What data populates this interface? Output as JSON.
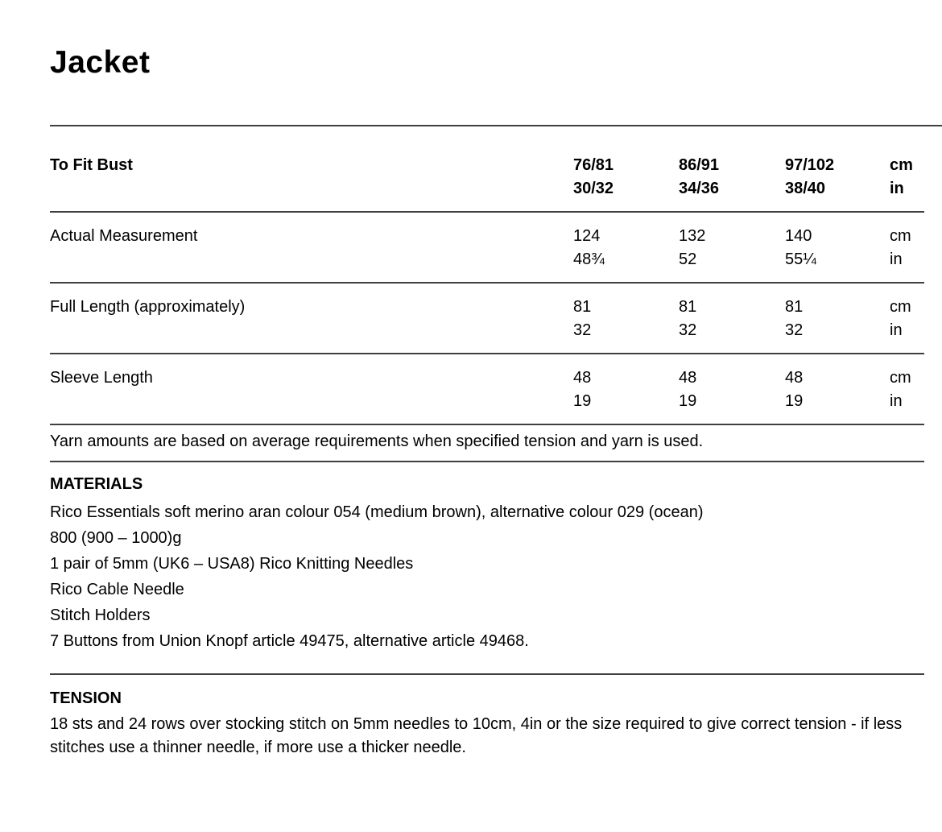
{
  "page": {
    "title": "Jacket"
  },
  "colors": {
    "background": "#ffffff",
    "text": "#000000",
    "rule": "#3f3f3f"
  },
  "size_table": {
    "header": {
      "label": "To Fit Bust",
      "sizes": [
        {
          "cm": "76/81",
          "in": "30/32"
        },
        {
          "cm": "86/91",
          "in": "34/36"
        },
        {
          "cm": "97/102",
          "in": "38/40"
        }
      ],
      "unit": {
        "cm": "cm",
        "in": "in"
      }
    },
    "rows": [
      {
        "label": "Actual Measurement",
        "values": [
          {
            "cm": "124",
            "in": "48¾"
          },
          {
            "cm": "132",
            "in": "52"
          },
          {
            "cm": "140",
            "in": "55¼"
          }
        ],
        "unit": {
          "cm": "cm",
          "in": "in"
        }
      },
      {
        "label": "Full Length (approximately)",
        "values": [
          {
            "cm": "81",
            "in": "32"
          },
          {
            "cm": "81",
            "in": "32"
          },
          {
            "cm": "81",
            "in": "32"
          }
        ],
        "unit": {
          "cm": "cm",
          "in": "in"
        }
      },
      {
        "label": "Sleeve Length",
        "values": [
          {
            "cm": "48",
            "in": "19"
          },
          {
            "cm": "48",
            "in": "19"
          },
          {
            "cm": "48",
            "in": "19"
          }
        ],
        "unit": {
          "cm": "cm",
          "in": "in"
        }
      }
    ]
  },
  "yarn_note": "Yarn amounts are based on average requirements when specified tension and yarn is used.",
  "materials": {
    "heading": "MATERIALS",
    "items": [
      "Rico Essentials soft merino aran colour 054 (medium brown), alternative colour 029 (ocean)",
      "800 (900 – 1000)g",
      "1 pair of 5mm (UK6 – USA8) Rico Knitting Needles",
      "Rico Cable Needle",
      "Stitch Holders",
      "7 Buttons from Union Knopf article 49475, alternative article 49468."
    ]
  },
  "tension": {
    "heading": "TENSION",
    "text": "18 sts and 24 rows over stocking stitch on 5mm needles to 10cm, 4in or the size required to give correct tension - if less stitches use a thinner needle, if more use a thicker needle."
  }
}
